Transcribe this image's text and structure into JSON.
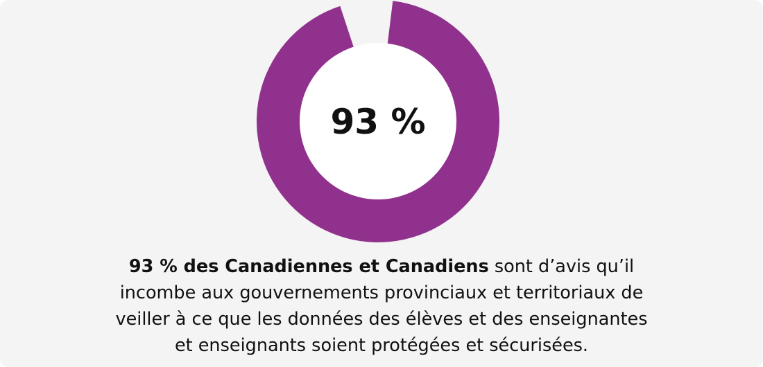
{
  "chart_data": {
    "type": "pie",
    "center_label": "93 %",
    "values": [
      93,
      7
    ],
    "colors": {
      "filled": "#91318e",
      "gap": "#f4f4f4",
      "inner": "#ffffff",
      "center_text": "#111111"
    }
  },
  "caption": {
    "bold": "93 % des Canadiennes et Canadiens",
    "line1_rest": " sont d’avis qu’il",
    "line2": "incombe aux gouvernements provinciaux et territoriaux de",
    "line3": "veiller à ce que les données des élèves et des enseignantes",
    "line4": "et enseignants soient protégées et sécurisées."
  }
}
